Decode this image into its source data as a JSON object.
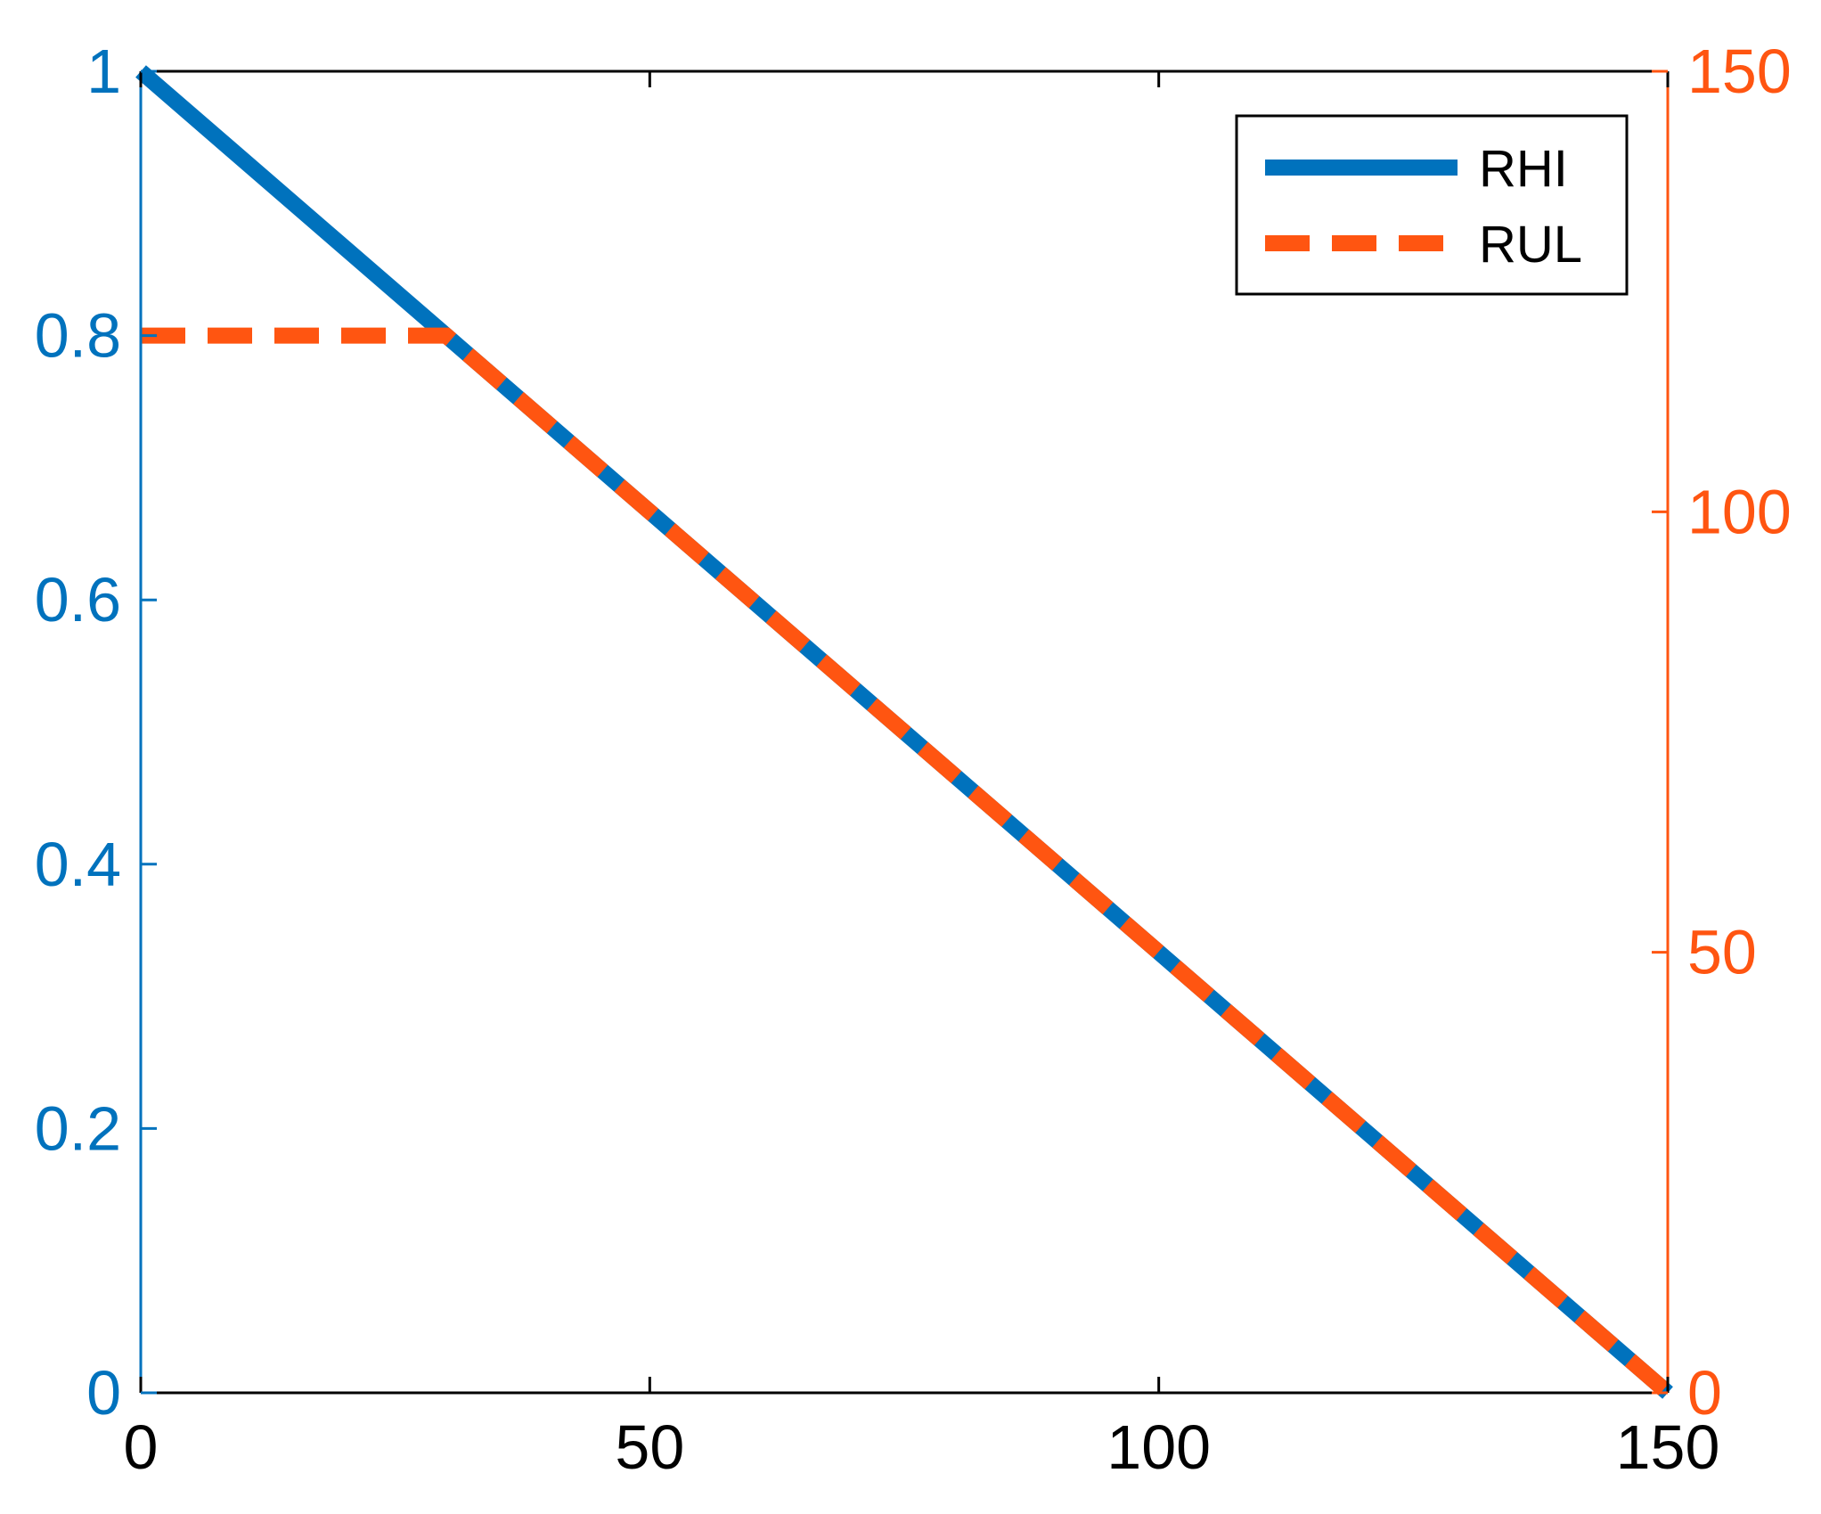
{
  "chart_data": {
    "type": "line",
    "title": "",
    "xlabel": "",
    "ylabel": "",
    "y2label": "",
    "xlim": [
      0,
      150
    ],
    "ylim": [
      0,
      1
    ],
    "y2lim": [
      0,
      150
    ],
    "x_ticks": [
      "0",
      "50",
      "100",
      "150"
    ],
    "y_ticks": [
      "0",
      "0.2",
      "0.4",
      "0.6",
      "0.8",
      "1"
    ],
    "y2_ticks": [
      "0",
      "50",
      "100",
      "150"
    ],
    "grid": false,
    "legend_position": "top-right",
    "series": [
      {
        "name": "RHI",
        "axis": "left",
        "style": "solid",
        "color": "#0072BD",
        "x": [
          0,
          150
        ],
        "y": [
          1,
          0
        ]
      },
      {
        "name": "RUL",
        "axis": "right",
        "style": "dashed",
        "color": "#FF5511",
        "x": [
          0,
          30,
          150
        ],
        "y": [
          120,
          120,
          0
        ]
      }
    ],
    "colors": {
      "left_axis": "#0072BD",
      "right_axis": "#FF5511",
      "bottom_axis": "#000000"
    }
  }
}
